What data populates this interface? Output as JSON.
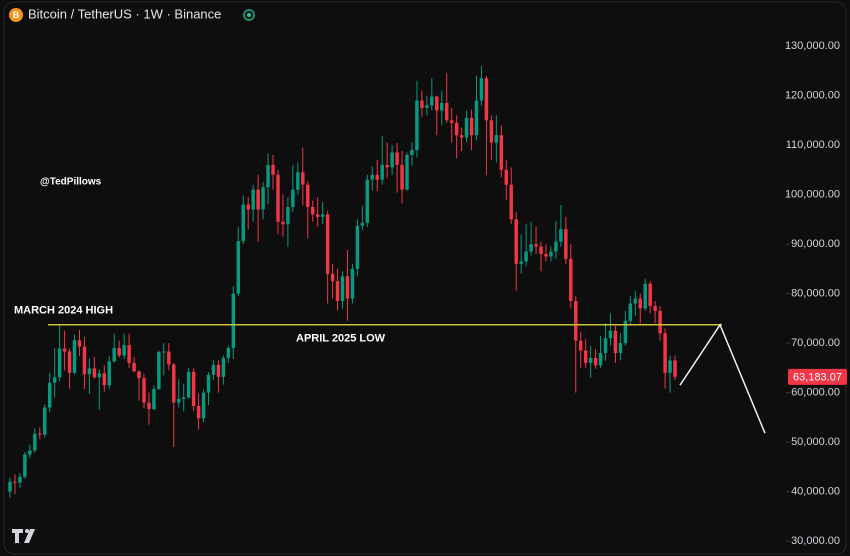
{
  "chart_data": {
    "type": "candlestick",
    "title": "Bitcoin / TetherUS · 1W · Binance",
    "watermark": "@TedPillows",
    "up_color": "#089981",
    "down_color": "#f23645",
    "grid": false,
    "ylim": [
      27000,
      139300
    ],
    "yticks": [
      {
        "value": 30000,
        "label": "30,000.00"
      },
      {
        "value": 40000,
        "label": "40,000.00"
      },
      {
        "value": 50000,
        "label": "50,000.00"
      },
      {
        "value": 60000,
        "label": "60,000.00"
      },
      {
        "value": 70000,
        "label": "70,000.00"
      },
      {
        "value": 80000,
        "label": "80,000.00"
      },
      {
        "value": 90000,
        "label": "90,000.00"
      },
      {
        "value": 100000,
        "label": "100,000.00"
      },
      {
        "value": 110000,
        "label": "110,000.00"
      },
      {
        "value": 120000,
        "label": "120,000.00"
      },
      {
        "value": 130000,
        "label": "130,000.00"
      }
    ],
    "last_price_label": "63,183.07",
    "level": 73700,
    "level_color": "#c9c23a",
    "level_labels": [
      "MARCH 2024 HIGH",
      "APRIL 2025 LOW"
    ],
    "projection": [
      61500,
      73700,
      51800
    ],
    "candles": [
      [
        40000,
        42800,
        38800,
        42000
      ],
      [
        42000,
        43500,
        39500,
        41800
      ],
      [
        41800,
        43800,
        40800,
        43000
      ],
      [
        43000,
        48000,
        42600,
        47500
      ],
      [
        47500,
        49500,
        46800,
        48300
      ],
      [
        48300,
        52800,
        47900,
        51700
      ],
      [
        51700,
        53000,
        50600,
        51500
      ],
      [
        51500,
        57600,
        50900,
        57000
      ],
      [
        57000,
        64000,
        56000,
        62000
      ],
      [
        62000,
        69000,
        59000,
        63100
      ],
      [
        63100,
        73700,
        62300,
        68900
      ],
      [
        68900,
        72500,
        64500,
        68300
      ],
      [
        68300,
        68900,
        60800,
        64000
      ],
      [
        64000,
        71700,
        63700,
        70600
      ],
      [
        70600,
        72700,
        67400,
        69300
      ],
      [
        69300,
        71200,
        60700,
        63700
      ],
      [
        63700,
        66900,
        59700,
        64900
      ],
      [
        64900,
        67200,
        62800,
        63100
      ],
      [
        63100,
        64700,
        56500,
        63900
      ],
      [
        63900,
        65500,
        60200,
        61500
      ],
      [
        61500,
        67400,
        60700,
        66300
      ],
      [
        66300,
        71900,
        66100,
        69000
      ],
      [
        69000,
        70500,
        67100,
        67500
      ],
      [
        67500,
        71900,
        66800,
        69600
      ],
      [
        69600,
        71900,
        65000,
        66000
      ],
      [
        66000,
        67200,
        64100,
        64300
      ],
      [
        64300,
        64500,
        58400,
        62900
      ],
      [
        62900,
        63700,
        56800,
        58000
      ],
      [
        58000,
        60000,
        53500,
        56700
      ],
      [
        56700,
        61500,
        56500,
        60700
      ],
      [
        60700,
        68500,
        60600,
        68200
      ],
      [
        68200,
        70000,
        63500,
        68300
      ],
      [
        68300,
        70000,
        64500,
        65700
      ],
      [
        65700,
        66000,
        49000,
        58000
      ],
      [
        58000,
        62700,
        57000,
        58700
      ],
      [
        58700,
        61800,
        56200,
        59000
      ],
      [
        59000,
        65000,
        58800,
        64200
      ],
      [
        64200,
        64900,
        56300,
        57300
      ],
      [
        57300,
        59800,
        52500,
        54800
      ],
      [
        54800,
        60600,
        54000,
        60000
      ],
      [
        60000,
        64100,
        57500,
        63600
      ],
      [
        63600,
        66500,
        62500,
        65600
      ],
      [
        65600,
        66500,
        60000,
        63200
      ],
      [
        63200,
        67500,
        61600,
        67000
      ],
      [
        67000,
        69500,
        66000,
        69000
      ],
      [
        69000,
        81500,
        66800,
        80000
      ],
      [
        80000,
        93500,
        79500,
        90600
      ],
      [
        90600,
        99800,
        90000,
        98000
      ],
      [
        98000,
        99500,
        93000,
        97000
      ],
      [
        97000,
        102000,
        94500,
        101000
      ],
      [
        101000,
        104000,
        90500,
        97000
      ],
      [
        97000,
        102500,
        95000,
        101500
      ],
      [
        101500,
        108300,
        98000,
        106000
      ],
      [
        106000,
        108000,
        101000,
        104000
      ],
      [
        104000,
        105000,
        92000,
        94500
      ],
      [
        94500,
        100000,
        91500,
        94000
      ],
      [
        94000,
        99500,
        89500,
        97500
      ],
      [
        97500,
        106000,
        96500,
        101000
      ],
      [
        101000,
        106500,
        100000,
        104500
      ],
      [
        104500,
        109500,
        97800,
        102000
      ],
      [
        102000,
        102700,
        91200,
        97500
      ],
      [
        97500,
        98800,
        94500,
        96000
      ],
      [
        96000,
        99500,
        93500,
        95500
      ],
      [
        95500,
        98500,
        94000,
        96000
      ],
      [
        96000,
        96700,
        78000,
        84000
      ],
      [
        84000,
        86000,
        79000,
        82500
      ],
      [
        82500,
        85000,
        76600,
        78500
      ],
      [
        78500,
        84500,
        77000,
        83500
      ],
      [
        83500,
        88800,
        74500,
        79000
      ],
      [
        79000,
        86000,
        78000,
        85000
      ],
      [
        85000,
        95000,
        83500,
        93700
      ],
      [
        93700,
        97800,
        92800,
        94300
      ],
      [
        94300,
        104000,
        93400,
        103000
      ],
      [
        103000,
        105700,
        100800,
        104000
      ],
      [
        104000,
        107000,
        100700,
        103000
      ],
      [
        103000,
        111900,
        102000,
        106000
      ],
      [
        106000,
        110500,
        103300,
        105500
      ],
      [
        105500,
        110000,
        104000,
        108500
      ],
      [
        108500,
        110400,
        100400,
        106000
      ],
      [
        106000,
        108800,
        98200,
        101000
      ],
      [
        101000,
        108500,
        100800,
        108000
      ],
      [
        108000,
        110600,
        105800,
        109000
      ],
      [
        109000,
        123000,
        107500,
        119000
      ],
      [
        119000,
        121000,
        115700,
        117500
      ],
      [
        117500,
        120000,
        116000,
        118000
      ],
      [
        118000,
        123500,
        117000,
        119800
      ],
      [
        119800,
        120000,
        112000,
        117000
      ],
      [
        117000,
        121000,
        114000,
        118500
      ],
      [
        118500,
        124500,
        114500,
        115000
      ],
      [
        115000,
        117500,
        110500,
        114500
      ],
      [
        114500,
        116000,
        107300,
        112000
      ],
      [
        112000,
        113500,
        108800,
        111500
      ],
      [
        111500,
        117000,
        110600,
        115500
      ],
      [
        115500,
        117200,
        109000,
        112000
      ],
      [
        112000,
        124000,
        111000,
        119000
      ],
      [
        119000,
        126000,
        118000,
        123500
      ],
      [
        123500,
        124000,
        104000,
        115000
      ],
      [
        115000,
        116000,
        107000,
        110500
      ],
      [
        110500,
        116000,
        106500,
        112000
      ],
      [
        112000,
        114000,
        103500,
        105000
      ],
      [
        105000,
        107000,
        98900,
        102000
      ],
      [
        102000,
        105500,
        94000,
        95000
      ],
      [
        95000,
        96500,
        80600,
        86000
      ],
      [
        86000,
        92000,
        84000,
        86500
      ],
      [
        86500,
        94000,
        85500,
        88500
      ],
      [
        88500,
        94500,
        87700,
        90000
      ],
      [
        90000,
        93500,
        88000,
        89500
      ],
      [
        89500,
        90500,
        84500,
        88000
      ],
      [
        88000,
        90000,
        86500,
        87500
      ],
      [
        87500,
        89500,
        86500,
        88500
      ],
      [
        88500,
        94700,
        87000,
        90500
      ],
      [
        90500,
        97900,
        89500,
        93000
      ],
      [
        93000,
        95500,
        86000,
        87000
      ],
      [
        87000,
        90000,
        77000,
        78500
      ],
      [
        78500,
        79500,
        60000,
        70500
      ],
      [
        70500,
        72300,
        65000,
        68500
      ],
      [
        68500,
        70800,
        65000,
        66000
      ],
      [
        66000,
        69500,
        63000,
        67000
      ],
      [
        67000,
        68800,
        64800,
        65500
      ],
      [
        65500,
        71500,
        65000,
        68000
      ],
      [
        68000,
        74000,
        66500,
        71000
      ],
      [
        71000,
        76000,
        69500,
        72500
      ],
      [
        72500,
        73500,
        66000,
        68000
      ],
      [
        68000,
        72000,
        66500,
        70000
      ],
      [
        70000,
        76500,
        69500,
        74500
      ],
      [
        74500,
        79500,
        73500,
        78000
      ],
      [
        78000,
        80500,
        75500,
        79000
      ],
      [
        79000,
        80000,
        74000,
        77000
      ],
      [
        77000,
        83000,
        76500,
        82000
      ],
      [
        82000,
        82500,
        76000,
        77500
      ],
      [
        77500,
        78500,
        74000,
        76500
      ],
      [
        76500,
        77500,
        70500,
        72000
      ],
      [
        72000,
        73000,
        60800,
        64000
      ],
      [
        64000,
        67500,
        60000,
        66500
      ],
      [
        66500,
        67500,
        62500,
        63183.07
      ]
    ]
  }
}
